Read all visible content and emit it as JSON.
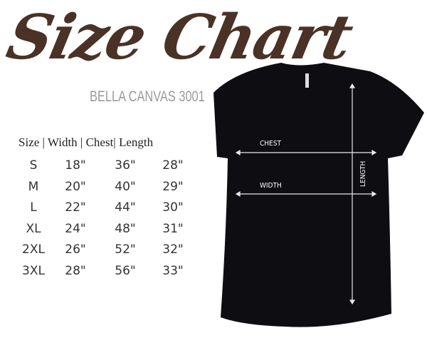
{
  "title": "Size Chart",
  "subtitle": "BELLA CANVAS 3001",
  "table": {
    "header": "Size | Width | Chest| Length",
    "rows": [
      [
        "S",
        "18\"",
        "36\"",
        "28\""
      ],
      [
        "M",
        "20\"",
        "40\"",
        "29\""
      ],
      [
        "L",
        "22\"",
        "44\"",
        "30\""
      ],
      [
        "XL",
        "24\"",
        "48\"",
        "31\""
      ],
      [
        "2XL",
        "26\"",
        "52\"",
        "32\""
      ],
      [
        "3XL",
        "28\"",
        "56\"",
        "33\""
      ]
    ]
  },
  "shirt": {
    "color": "#0d0d12",
    "labels": {
      "chest": "CHEST",
      "width": "WIDTH",
      "length": "LENGTH"
    }
  },
  "colors": {
    "title": "#4a3226",
    "subtitle": "#9a9a9a"
  }
}
